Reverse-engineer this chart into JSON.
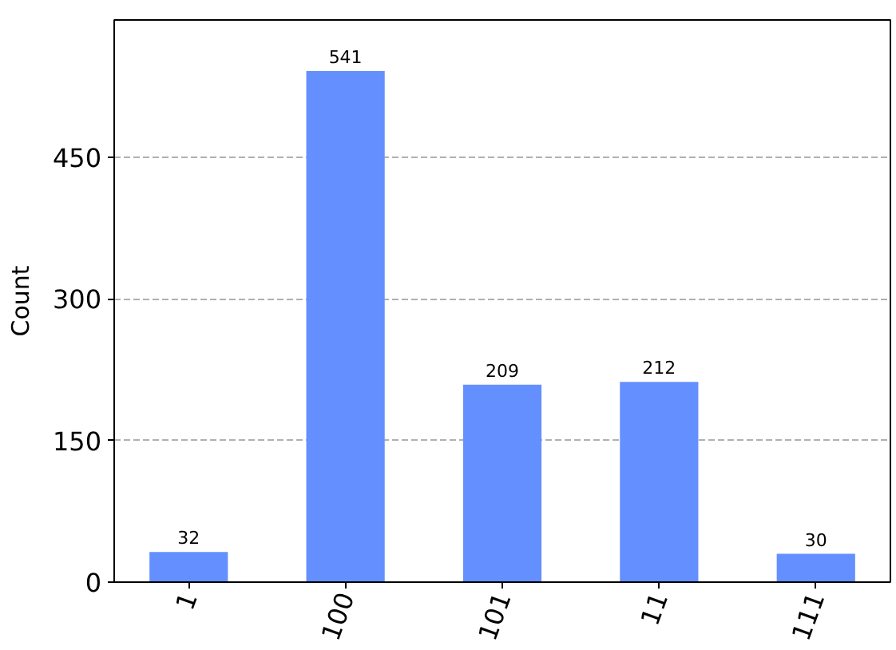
{
  "chart_data": {
    "type": "bar",
    "ylabel": "Count",
    "categories": [
      "1",
      "100",
      "101",
      "11",
      "111"
    ],
    "values": [
      32,
      541,
      209,
      212,
      30
    ],
    "color": "#648fff",
    "ylim": [
      0,
      595
    ],
    "yticks": [
      0,
      150,
      300,
      450
    ],
    "grid": "y",
    "data_labels": true
  }
}
